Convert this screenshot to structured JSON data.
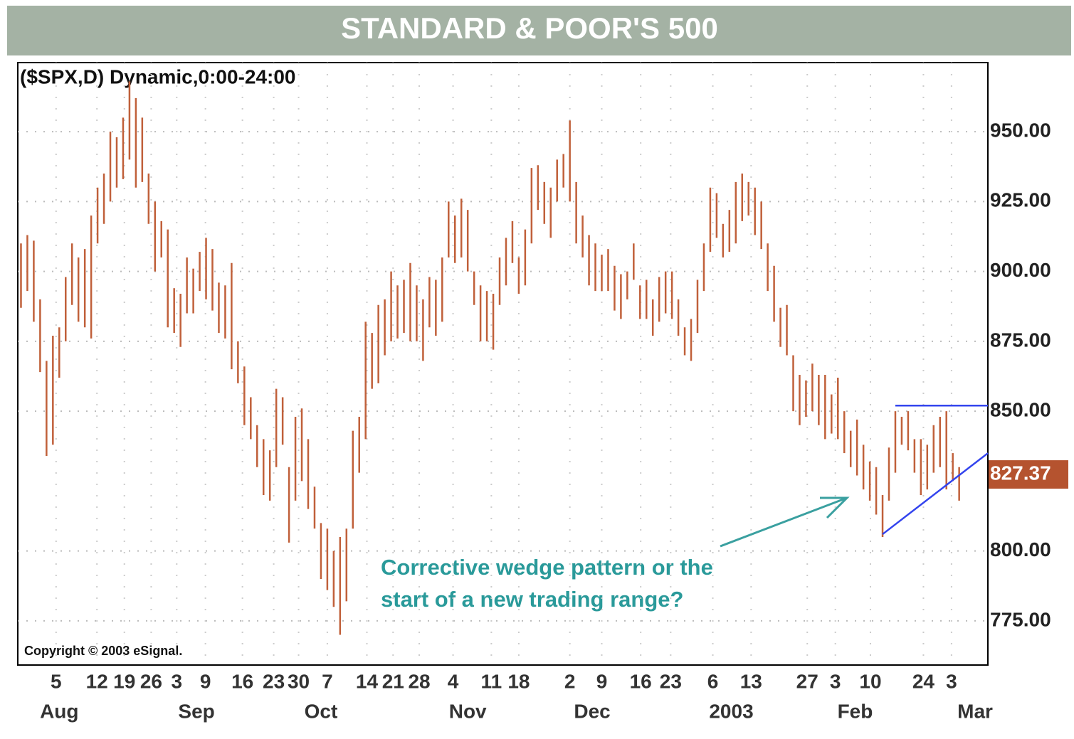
{
  "chart_data": {
    "type": "ohlc",
    "title": "STANDARD & POOR'S 500",
    "subtitle": "($SPX,D) Dynamic,0:00-24:00",
    "copyright": "Copyright © 2003 eSignal.",
    "annotation": [
      "Corrective wedge pattern or the",
      "start of a new trading range?"
    ],
    "color": "#c0603a",
    "high": [
      910,
      913,
      911,
      890,
      868,
      877,
      880,
      898,
      910,
      905,
      908,
      920,
      930,
      935,
      950,
      948,
      955,
      968,
      962,
      955,
      935,
      925,
      918,
      915,
      894,
      892,
      905,
      901,
      907,
      912,
      908,
      896,
      895,
      903,
      875,
      866,
      855,
      845,
      840,
      836,
      858,
      855,
      830,
      848,
      851,
      840,
      823,
      810,
      808,
      800,
      805,
      808,
      843,
      848,
      882,
      878,
      888,
      890,
      900,
      895,
      897,
      903,
      895,
      890,
      898,
      897,
      905,
      925,
      920,
      926,
      922,
      900,
      895,
      893,
      892,
      905,
      912,
      918,
      905,
      915,
      937,
      938,
      932,
      930,
      940,
      942,
      954,
      932,
      920,
      913,
      910,
      906,
      908,
      902,
      899,
      900,
      910,
      895,
      897,
      890,
      898,
      900,
      900,
      890,
      880,
      883,
      897,
      910,
      930,
      928,
      917,
      922,
      932,
      935,
      932,
      930,
      925,
      910,
      902,
      887,
      888,
      870,
      863,
      861,
      867,
      863,
      863,
      856,
      862,
      850,
      843,
      847,
      838,
      832,
      830,
      820,
      837,
      850,
      848,
      850,
      840,
      840,
      838,
      845,
      848,
      850,
      835,
      830
    ],
    "low": [
      887,
      893,
      882,
      864,
      834,
      838,
      862,
      875,
      888,
      882,
      880,
      876,
      910,
      917,
      925,
      930,
      933,
      940,
      930,
      932,
      917,
      900,
      905,
      880,
      878,
      873,
      885,
      885,
      893,
      890,
      886,
      878,
      876,
      865,
      860,
      845,
      840,
      830,
      820,
      818,
      830,
      838,
      803,
      818,
      825,
      815,
      808,
      790,
      786,
      780,
      770,
      782,
      808,
      828,
      840,
      858,
      860,
      870,
      875,
      876,
      878,
      875,
      875,
      868,
      880,
      877,
      882,
      905,
      903,
      905,
      900,
      888,
      875,
      875,
      872,
      888,
      895,
      903,
      892,
      895,
      910,
      922,
      917,
      912,
      925,
      930,
      925,
      910,
      905,
      895,
      893,
      893,
      893,
      886,
      883,
      890,
      897,
      883,
      883,
      877,
      882,
      885,
      883,
      877,
      870,
      868,
      878,
      893,
      907,
      912,
      905,
      907,
      910,
      918,
      920,
      913,
      908,
      893,
      882,
      873,
      870,
      850,
      845,
      848,
      850,
      845,
      840,
      842,
      840,
      835,
      830,
      827,
      822,
      818,
      813,
      805,
      818,
      828,
      838,
      836,
      828,
      820,
      822,
      828,
      830,
      822,
      825,
      818
    ],
    "last_price": 827.37,
    "last_price_color": "#b5532f",
    "trend_lines": [
      {
        "color": "#3344ee",
        "x": [
          137,
          151.5
        ],
        "y": [
          852,
          852
        ]
      },
      {
        "color": "#3344ee",
        "x": [
          135,
          151.5
        ],
        "y": [
          806,
          835
        ]
      }
    ],
    "xlim": [
      -0.5,
      151.5
    ],
    "ylim": [
      759.2,
      974.7
    ],
    "yticks": [
      {
        "value": 775,
        "label": "775.00"
      },
      {
        "value": 800,
        "label": "800.00"
      },
      {
        "value": 850,
        "label": "850.00"
      },
      {
        "value": 875,
        "label": "875.00"
      },
      {
        "value": 900,
        "label": "900.00"
      },
      {
        "value": 925,
        "label": "925.00"
      },
      {
        "value": 950,
        "label": "950.00"
      }
    ],
    "xticks": [
      {
        "value": 5.5,
        "label": "5"
      },
      {
        "value": 11.9,
        "label": "12"
      },
      {
        "value": 16.2,
        "label": "19"
      },
      {
        "value": 20.4,
        "label": "26"
      },
      {
        "value": 24.4,
        "label": "3"
      },
      {
        "value": 28.9,
        "label": "9"
      },
      {
        "value": 34.7,
        "label": "16"
      },
      {
        "value": 39.6,
        "label": "23"
      },
      {
        "value": 43.5,
        "label": "30"
      },
      {
        "value": 48,
        "label": "7"
      },
      {
        "value": 54.2,
        "label": "14"
      },
      {
        "value": 58.3,
        "label": "21"
      },
      {
        "value": 62.4,
        "label": "28"
      },
      {
        "value": 67.7,
        "label": "4"
      },
      {
        "value": 73.7,
        "label": "11"
      },
      {
        "value": 78,
        "label": "18"
      },
      {
        "value": 86,
        "label": "2"
      },
      {
        "value": 91,
        "label": "9"
      },
      {
        "value": 97.1,
        "label": "16"
      },
      {
        "value": 101.8,
        "label": "23"
      },
      {
        "value": 108.4,
        "label": "6"
      },
      {
        "value": 114.4,
        "label": "13"
      },
      {
        "value": 123.2,
        "label": "27"
      },
      {
        "value": 127.6,
        "label": "3"
      },
      {
        "value": 133.1,
        "label": "10"
      },
      {
        "value": 141.4,
        "label": "24"
      },
      {
        "value": 145.8,
        "label": "3"
      }
    ],
    "month_ticks": [
      {
        "value": 6,
        "label": "Aug"
      },
      {
        "value": 27.5,
        "label": "Sep"
      },
      {
        "value": 47,
        "label": "Oct"
      },
      {
        "value": 70,
        "label": "Nov"
      },
      {
        "value": 89.5,
        "label": "Dec"
      },
      {
        "value": 111.3,
        "label": "2003"
      },
      {
        "value": 130.7,
        "label": "Feb"
      },
      {
        "value": 149.5,
        "label": "Mar"
      }
    ],
    "grid": true
  }
}
